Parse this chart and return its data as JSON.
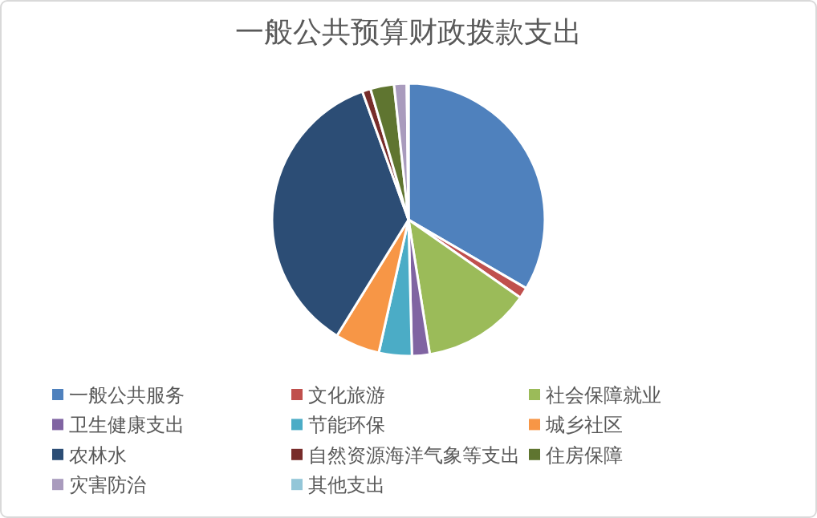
{
  "chart_data": {
    "type": "pie",
    "title": "一般公共预算财政拨款支出",
    "legend": "bottom",
    "categories": [
      "一般公共服务",
      "文化旅游",
      "社会保障就业",
      "卫生健康支出",
      "节能环保",
      "城乡社区",
      "农林水",
      "自然资源海洋气象等支出",
      "住房保障",
      "灾害防治",
      "其他支出"
    ],
    "values": [
      33.4,
      1.3,
      12.8,
      2.1,
      3.9,
      5.3,
      35.7,
      1.0,
      2.8,
      1.5,
      0.2
    ],
    "colors": [
      "#4f81bd",
      "#c0504d",
      "#9bbb59",
      "#8064a2",
      "#4bacc6",
      "#f79646",
      "#2c4d75",
      "#772c2a",
      "#5f7530",
      "#a99bbd",
      "#93c6d8"
    ]
  }
}
